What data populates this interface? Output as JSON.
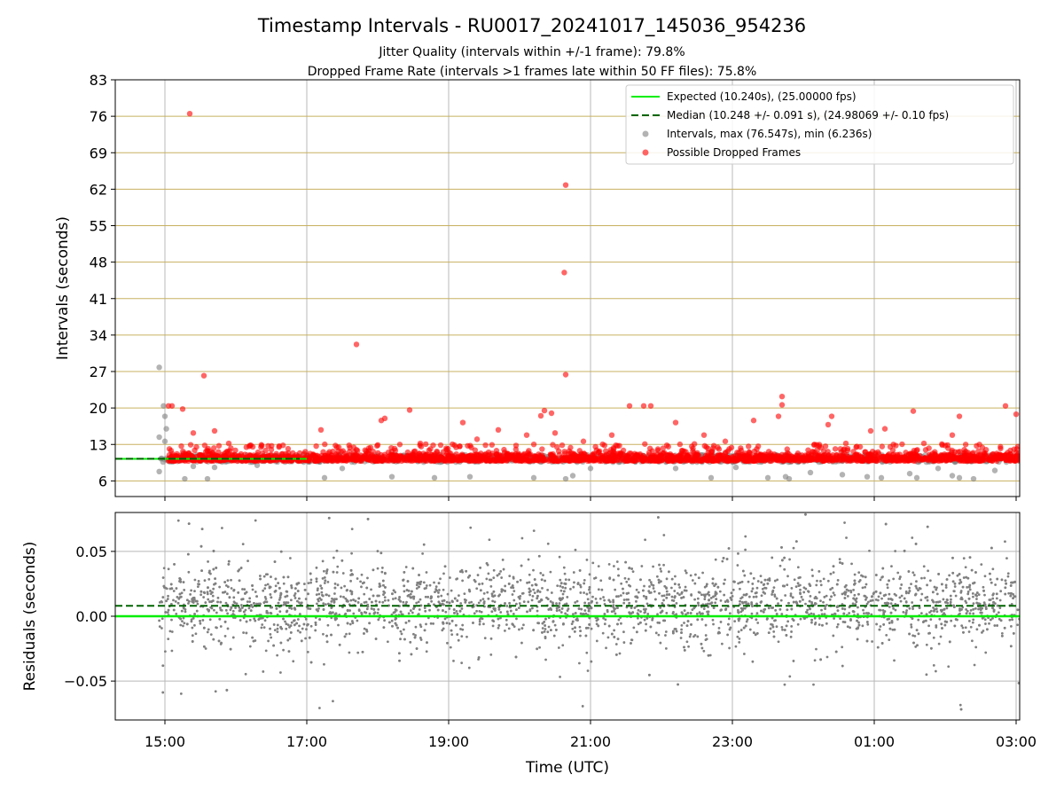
{
  "figure": {
    "title": "Timestamp Intervals - RU0017_20241017_145036_954236",
    "subtitle_1": "Jitter Quality (intervals within +/-1 frame): 79.8%",
    "subtitle_2": "Dropped Frame Rate (intervals >1 frames late within 50 FF files): 75.8%"
  },
  "colors": {
    "expected": "#00ee00",
    "median": "#006400",
    "intervals": "#808080",
    "dropped": "#ff0000",
    "hgrid_top": "#c8b060",
    "vgrid": "#b8b8b8"
  },
  "chart_data": [
    {
      "type": "scatter",
      "ylabel": "Intervals (seconds)",
      "ylim": [
        3,
        83
      ],
      "yticks": [
        6,
        13,
        20,
        27,
        34,
        41,
        48,
        55,
        62,
        69,
        76,
        83
      ],
      "xlim": [
        14.3,
        27.05
      ],
      "xticks": [
        15,
        17,
        19,
        21,
        23,
        25,
        27
      ],
      "xtick_labels": [
        "15:00",
        "17:00",
        "19:00",
        "21:00",
        "23:00",
        "01:00",
        "03:00"
      ],
      "grid": "horizontal and vertical",
      "legend_position": "top-right",
      "legend": [
        "Expected (10.240s), (25.00000 fps)",
        "Median (10.248 +/- 0.091 s), (24.98069 +/- 0.10 fps)",
        "Intervals, max (76.547s), min (6.236s)",
        "Possible Dropped Frames"
      ],
      "expected_y": 10.24,
      "median_y": 10.248,
      "series": [
        {
          "name": "Possible Dropped Frames",
          "points": [
            [
              15.35,
              76.5
            ],
            [
              15.55,
              26.2
            ],
            [
              17.7,
              32.2
            ],
            [
              20.65,
              62.8
            ],
            [
              20.63,
              46.0
            ],
            [
              20.65,
              26.4
            ],
            [
              20.3,
              18.5
            ],
            [
              20.35,
              19.5
            ],
            [
              20.45,
              19.0
            ],
            [
              20.1,
              14.8
            ],
            [
              20.5,
              15.2
            ],
            [
              15.05,
              20.4
            ],
            [
              15.1,
              20.4
            ],
            [
              15.25,
              19.8
            ],
            [
              15.4,
              15.2
            ],
            [
              15.7,
              15.6
            ],
            [
              16.2,
              12.8
            ],
            [
              17.2,
              15.8
            ],
            [
              18.1,
              18.0
            ],
            [
              18.05,
              17.6
            ],
            [
              18.45,
              19.6
            ],
            [
              18.6,
              13.2
            ],
            [
              19.2,
              17.2
            ],
            [
              19.4,
              14.0
            ],
            [
              19.7,
              15.8
            ],
            [
              19.95,
              12.8
            ],
            [
              21.55,
              20.4
            ],
            [
              21.75,
              20.4
            ],
            [
              21.85,
              20.4
            ],
            [
              22.2,
              17.2
            ],
            [
              22.6,
              14.8
            ],
            [
              23.3,
              17.6
            ],
            [
              23.7,
              22.2
            ],
            [
              23.7,
              20.6
            ],
            [
              23.65,
              18.4
            ],
            [
              24.4,
              18.4
            ],
            [
              24.35,
              16.8
            ],
            [
              24.95,
              15.6
            ],
            [
              25.15,
              16.0
            ],
            [
              25.55,
              19.4
            ],
            [
              26.2,
              18.4
            ],
            [
              26.1,
              14.8
            ],
            [
              26.85,
              20.4
            ],
            [
              27.0,
              18.8
            ],
            [
              26.0,
              12.8
            ],
            [
              25.7,
              13.2
            ],
            [
              24.6,
              13.2
            ],
            [
              22.9,
              13.6
            ],
            [
              21.3,
              14.8
            ],
            [
              20.9,
              13.6
            ],
            [
              17.9,
              12.4
            ],
            [
              16.5,
              12.0
            ],
            [
              15.9,
              13.2
            ]
          ]
        },
        {
          "name": "Intervals, max (76.547s), min (6.236s)",
          "points": [
            [
              14.92,
              27.8
            ],
            [
              14.92,
              14.4
            ],
            [
              14.92,
              7.8
            ],
            [
              14.98,
              20.4
            ],
            [
              15.0,
              18.4
            ],
            [
              15.02,
              16.0
            ],
            [
              15.0,
              13.6
            ],
            [
              15.28,
              6.4
            ],
            [
              15.6,
              6.4
            ],
            [
              15.4,
              8.8
            ],
            [
              15.7,
              8.6
            ],
            [
              16.3,
              9.0
            ],
            [
              17.25,
              6.6
            ],
            [
              17.5,
              8.4
            ],
            [
              18.2,
              6.8
            ],
            [
              18.8,
              6.6
            ],
            [
              19.3,
              6.8
            ],
            [
              20.2,
              6.6
            ],
            [
              20.65,
              6.4
            ],
            [
              20.75,
              7.0
            ],
            [
              21.0,
              8.4
            ],
            [
              22.2,
              8.4
            ],
            [
              22.7,
              6.6
            ],
            [
              23.05,
              8.6
            ],
            [
              23.5,
              6.6
            ],
            [
              23.75,
              6.8
            ],
            [
              23.8,
              6.4
            ],
            [
              24.1,
              7.6
            ],
            [
              24.55,
              7.2
            ],
            [
              24.9,
              6.8
            ],
            [
              25.1,
              6.6
            ],
            [
              25.5,
              7.4
            ],
            [
              25.6,
              6.6
            ],
            [
              25.9,
              8.4
            ],
            [
              26.1,
              7.0
            ],
            [
              26.2,
              6.6
            ],
            [
              26.4,
              6.4
            ],
            [
              26.7,
              8.0
            ]
          ]
        }
      ]
    },
    {
      "type": "scatter",
      "ylabel": "Residuals (seconds)",
      "xlabel": "Time (UTC)",
      "ylim": [
        -0.08,
        0.08
      ],
      "yticks": [
        0.05,
        0.0,
        -0.05
      ],
      "ytick_labels": [
        "0.05",
        "0.00",
        "−0.05"
      ],
      "xlim": [
        14.3,
        27.05
      ],
      "xticks": [
        15,
        17,
        19,
        21,
        23,
        25,
        27
      ],
      "xtick_labels": [
        "15:00",
        "17:00",
        "19:00",
        "21:00",
        "23:00",
        "01:00",
        "03:00"
      ],
      "expected_y": 0.0,
      "median_y": 0.008,
      "grid": "horizontal and vertical"
    }
  ]
}
